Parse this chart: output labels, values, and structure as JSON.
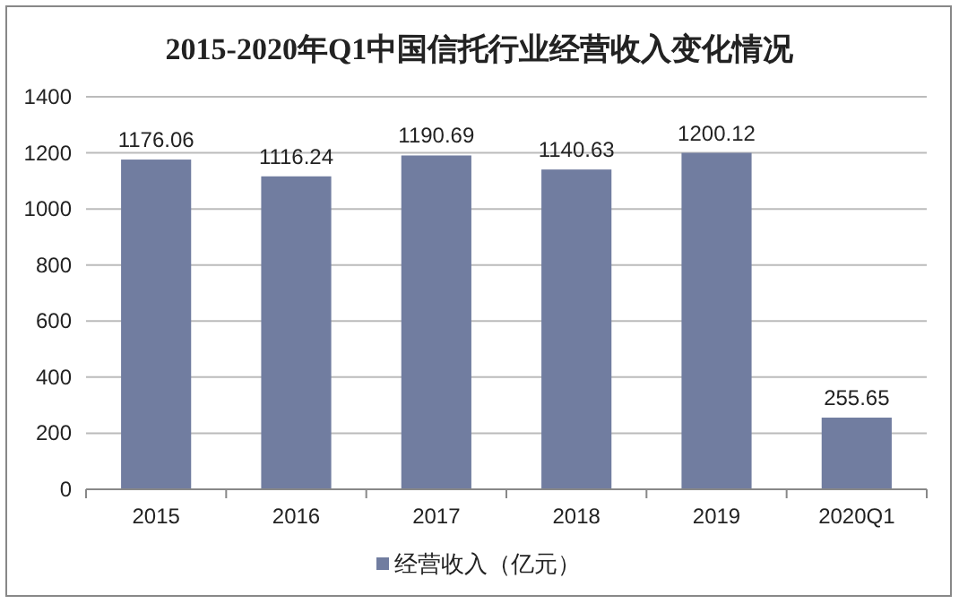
{
  "chart_data": {
    "type": "bar",
    "title": "2015-2020年Q1中国信托行业经营收入变化情况",
    "categories": [
      "2015",
      "2016",
      "2017",
      "2018",
      "2019",
      "2020Q1"
    ],
    "series": [
      {
        "name": "经营收入（亿元）",
        "color": "#717da0",
        "values": [
          1176.06,
          1116.24,
          1190.69,
          1140.63,
          1200.12,
          255.65
        ]
      }
    ],
    "ylim": [
      0,
      1400
    ],
    "yticks": [
      0,
      200,
      400,
      600,
      800,
      1000,
      1200,
      1400
    ],
    "grid": "y",
    "legend": "bottom",
    "data_labels": true
  }
}
